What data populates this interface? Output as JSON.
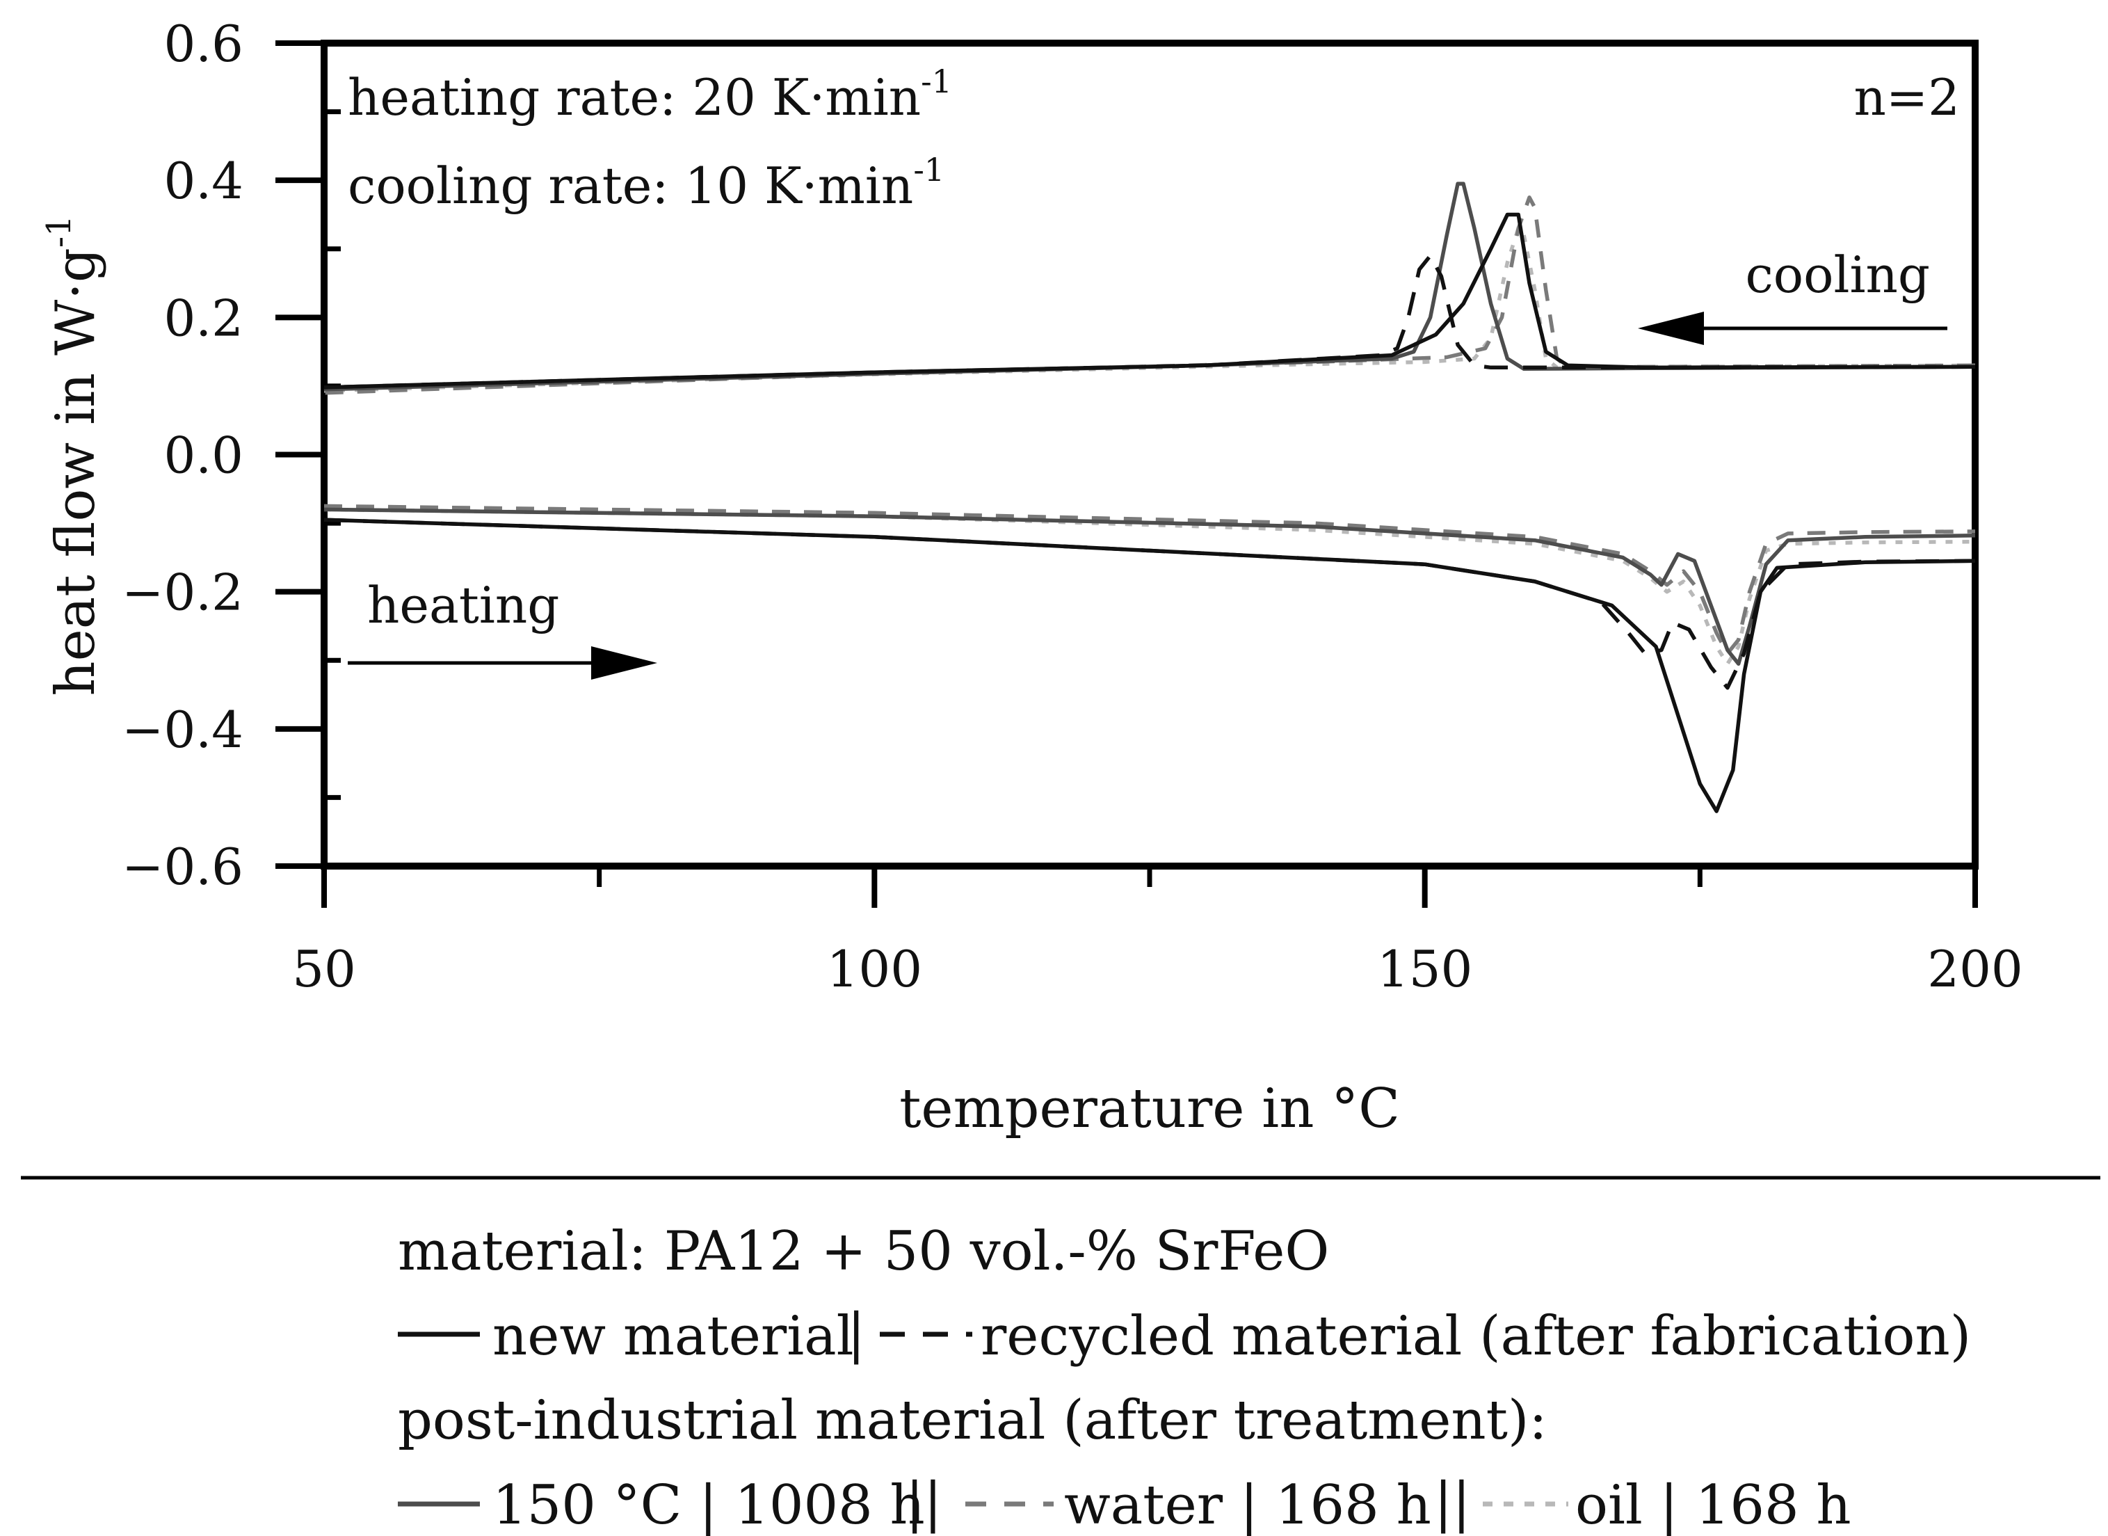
{
  "chart_data": {
    "type": "line",
    "title": "",
    "xlabel": "temperature in °C",
    "ylabel_main": "heat flow in W·g",
    "ylabel_sup": "-1",
    "xlim": [
      50,
      200
    ],
    "ylim": [
      -0.6,
      0.6
    ],
    "x_ticks": [
      50,
      100,
      150,
      200
    ],
    "x_tick_labels": [
      "50",
      "100",
      "150",
      "200"
    ],
    "y_ticks": [
      0.6,
      0.4,
      0.2,
      0.0,
      -0.2,
      -0.4,
      -0.6
    ],
    "y_tick_labels": [
      "0.6",
      "0.4",
      "0.2",
      "0.0",
      "−0.2",
      "−0.4",
      "−0.6"
    ],
    "annotations": {
      "heating_rate": {
        "text": "heating rate: 20 K·min",
        "sup": "-1"
      },
      "cooling_rate": {
        "text": "cooling rate: 10 K·min",
        "sup": "-1"
      },
      "n": "n=2",
      "cooling": "cooling",
      "heating": "heating"
    },
    "series": [
      {
        "name": "new material",
        "color": "#111111",
        "dash": "solid",
        "points": [
          {
            "x": 50,
            "y": -0.095,
            "segment": "heating"
          },
          {
            "x": 100,
            "y": -0.12
          },
          {
            "x": 150,
            "y": -0.16
          },
          {
            "x": 160,
            "y": -0.185
          },
          {
            "x": 167,
            "y": -0.22
          },
          {
            "x": 171,
            "y": -0.28
          },
          {
            "x": 173,
            "y": -0.38
          },
          {
            "x": 175,
            "y": -0.48
          },
          {
            "x": 176.5,
            "y": -0.52
          },
          {
            "x": 178,
            "y": -0.46
          },
          {
            "x": 179,
            "y": -0.32
          },
          {
            "x": 180.5,
            "y": -0.2
          },
          {
            "x": 182,
            "y": -0.165
          },
          {
            "x": 190,
            "y": -0.157
          },
          {
            "x": 200,
            "y": -0.155
          },
          {
            "x": 200,
            "y": 0.128,
            "segment": "cooling"
          },
          {
            "x": 170,
            "y": 0.127
          },
          {
            "x": 163,
            "y": 0.13
          },
          {
            "x": 161,
            "y": 0.15
          },
          {
            "x": 159.5,
            "y": 0.25
          },
          {
            "x": 158.5,
            "y": 0.35
          },
          {
            "x": 157.5,
            "y": 0.35
          },
          {
            "x": 156,
            "y": 0.3
          },
          {
            "x": 153.5,
            "y": 0.22
          },
          {
            "x": 151,
            "y": 0.175
          },
          {
            "x": 147,
            "y": 0.145
          },
          {
            "x": 130,
            "y": 0.13
          },
          {
            "x": 100,
            "y": 0.12
          },
          {
            "x": 50,
            "y": 0.098
          }
        ]
      },
      {
        "name": "recycled material (after fabrication)",
        "color": "#111111",
        "dash": "long-dash",
        "points": [
          {
            "x": 50,
            "y": -0.095,
            "segment": "heating"
          },
          {
            "x": 100,
            "y": -0.12
          },
          {
            "x": 150,
            "y": -0.16
          },
          {
            "x": 160,
            "y": -0.185
          },
          {
            "x": 166,
            "y": -0.215
          },
          {
            "x": 168.5,
            "y": -0.26
          },
          {
            "x": 170,
            "y": -0.29
          },
          {
            "x": 171.5,
            "y": -0.285
          },
          {
            "x": 172.5,
            "y": -0.245
          },
          {
            "x": 174,
            "y": -0.255
          },
          {
            "x": 176,
            "y": -0.31
          },
          {
            "x": 177.5,
            "y": -0.34
          },
          {
            "x": 179,
            "y": -0.29
          },
          {
            "x": 180.5,
            "y": -0.2
          },
          {
            "x": 183,
            "y": -0.16
          },
          {
            "x": 190,
            "y": -0.156
          },
          {
            "x": 200,
            "y": -0.155
          },
          {
            "x": 200,
            "y": 0.128,
            "segment": "cooling"
          },
          {
            "x": 170,
            "y": 0.127
          },
          {
            "x": 156,
            "y": 0.127
          },
          {
            "x": 154.5,
            "y": 0.13
          },
          {
            "x": 153,
            "y": 0.16
          },
          {
            "x": 151.5,
            "y": 0.26
          },
          {
            "x": 150.5,
            "y": 0.29
          },
          {
            "x": 149.5,
            "y": 0.27
          },
          {
            "x": 148.5,
            "y": 0.2
          },
          {
            "x": 147.5,
            "y": 0.155
          },
          {
            "x": 146,
            "y": 0.145
          },
          {
            "x": 130,
            "y": 0.13
          },
          {
            "x": 100,
            "y": 0.12
          },
          {
            "x": 50,
            "y": 0.098
          }
        ]
      },
      {
        "name": "150 °C | 1008 h",
        "color": "#4d4d4d",
        "dash": "solid",
        "points": [
          {
            "x": 50,
            "y": -0.08,
            "segment": "heating"
          },
          {
            "x": 100,
            "y": -0.09
          },
          {
            "x": 140,
            "y": -0.105
          },
          {
            "x": 160,
            "y": -0.125
          },
          {
            "x": 168,
            "y": -0.15
          },
          {
            "x": 170.5,
            "y": -0.175
          },
          {
            "x": 171.5,
            "y": -0.19
          },
          {
            "x": 173,
            "y": -0.145
          },
          {
            "x": 174.5,
            "y": -0.155
          },
          {
            "x": 176,
            "y": -0.22
          },
          {
            "x": 177.5,
            "y": -0.285
          },
          {
            "x": 178.5,
            "y": -0.305
          },
          {
            "x": 179.5,
            "y": -0.25
          },
          {
            "x": 181,
            "y": -0.16
          },
          {
            "x": 183,
            "y": -0.125
          },
          {
            "x": 190,
            "y": -0.12
          },
          {
            "x": 200,
            "y": -0.118
          },
          {
            "x": 200,
            "y": 0.128,
            "segment": "cooling"
          },
          {
            "x": 170,
            "y": 0.126
          },
          {
            "x": 159,
            "y": 0.125
          },
          {
            "x": 157.5,
            "y": 0.14
          },
          {
            "x": 156,
            "y": 0.22
          },
          {
            "x": 154.5,
            "y": 0.33
          },
          {
            "x": 153.5,
            "y": 0.395
          },
          {
            "x": 153,
            "y": 0.395
          },
          {
            "x": 152,
            "y": 0.32
          },
          {
            "x": 150.5,
            "y": 0.2
          },
          {
            "x": 149,
            "y": 0.15
          },
          {
            "x": 147,
            "y": 0.14
          },
          {
            "x": 130,
            "y": 0.13
          },
          {
            "x": 100,
            "y": 0.118
          },
          {
            "x": 50,
            "y": 0.095
          }
        ]
      },
      {
        "name": "water | 168 h",
        "color": "#7a7a7a",
        "dash": "medium-dash",
        "points": [
          {
            "x": 50,
            "y": -0.075,
            "segment": "heating"
          },
          {
            "x": 100,
            "y": -0.085
          },
          {
            "x": 140,
            "y": -0.1
          },
          {
            "x": 160,
            "y": -0.12
          },
          {
            "x": 168,
            "y": -0.145
          },
          {
            "x": 170.5,
            "y": -0.17
          },
          {
            "x": 172,
            "y": -0.19
          },
          {
            "x": 173.5,
            "y": -0.17
          },
          {
            "x": 175,
            "y": -0.2
          },
          {
            "x": 176.5,
            "y": -0.26
          },
          {
            "x": 177.5,
            "y": -0.29
          },
          {
            "x": 178.5,
            "y": -0.27
          },
          {
            "x": 179.5,
            "y": -0.2
          },
          {
            "x": 181,
            "y": -0.13
          },
          {
            "x": 183,
            "y": -0.115
          },
          {
            "x": 190,
            "y": -0.113
          },
          {
            "x": 200,
            "y": -0.112
          },
          {
            "x": 200,
            "y": 0.13,
            "segment": "cooling"
          },
          {
            "x": 170,
            "y": 0.128
          },
          {
            "x": 163,
            "y": 0.127
          },
          {
            "x": 162,
            "y": 0.14
          },
          {
            "x": 161,
            "y": 0.24
          },
          {
            "x": 160,
            "y": 0.36
          },
          {
            "x": 159.5,
            "y": 0.375
          },
          {
            "x": 158.5,
            "y": 0.33
          },
          {
            "x": 157,
            "y": 0.2
          },
          {
            "x": 155.5,
            "y": 0.155
          },
          {
            "x": 152,
            "y": 0.142
          },
          {
            "x": 140,
            "y": 0.135
          },
          {
            "x": 100,
            "y": 0.118
          },
          {
            "x": 50,
            "y": 0.09
          }
        ]
      },
      {
        "name": "oil | 168 h",
        "color": "#b8b8b8",
        "dash": "dotted",
        "points": [
          {
            "x": 50,
            "y": -0.08,
            "segment": "heating"
          },
          {
            "x": 100,
            "y": -0.09
          },
          {
            "x": 140,
            "y": -0.11
          },
          {
            "x": 160,
            "y": -0.13
          },
          {
            "x": 168,
            "y": -0.155
          },
          {
            "x": 170.5,
            "y": -0.18
          },
          {
            "x": 172,
            "y": -0.2
          },
          {
            "x": 173.5,
            "y": -0.185
          },
          {
            "x": 175,
            "y": -0.22
          },
          {
            "x": 176.5,
            "y": -0.28
          },
          {
            "x": 177.5,
            "y": -0.305
          },
          {
            "x": 178.5,
            "y": -0.28
          },
          {
            "x": 179.5,
            "y": -0.21
          },
          {
            "x": 181,
            "y": -0.14
          },
          {
            "x": 183,
            "y": -0.13
          },
          {
            "x": 190,
            "y": -0.128
          },
          {
            "x": 200,
            "y": -0.127
          },
          {
            "x": 200,
            "y": 0.13,
            "segment": "cooling"
          },
          {
            "x": 170,
            "y": 0.128
          },
          {
            "x": 162,
            "y": 0.127
          },
          {
            "x": 161,
            "y": 0.14
          },
          {
            "x": 160,
            "y": 0.24
          },
          {
            "x": 159,
            "y": 0.32
          },
          {
            "x": 158.5,
            "y": 0.33
          },
          {
            "x": 157.5,
            "y": 0.28
          },
          {
            "x": 156,
            "y": 0.17
          },
          {
            "x": 154.5,
            "y": 0.14
          },
          {
            "x": 150,
            "y": 0.135
          },
          {
            "x": 140,
            "y": 0.132
          },
          {
            "x": 100,
            "y": 0.117
          },
          {
            "x": 50,
            "y": 0.093
          }
        ]
      }
    ]
  },
  "legend": {
    "material": "material: PA12 + 50 vol.-% SrFeO",
    "new_label": "new material",
    "sep1": "|",
    "recycled_label": "recycled material (after fabrication)",
    "post_industrial": "post-industrial material (after treatment):",
    "temp_label": "150 °C | 1008 h",
    "sep2": "||",
    "water_label": "water | 168 h",
    "sep3": "||",
    "oil_label": "oil | 168 h"
  }
}
